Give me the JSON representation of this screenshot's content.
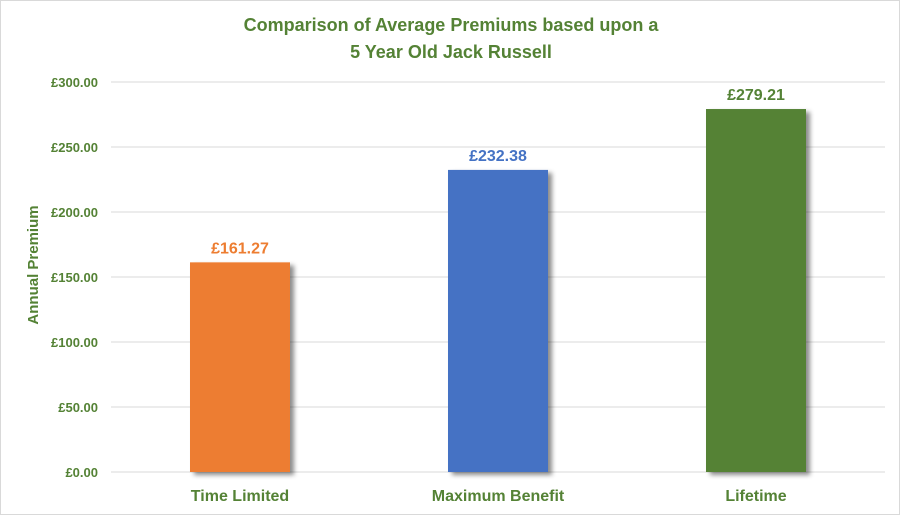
{
  "chart_data": {
    "type": "bar",
    "title_lines": [
      "Comparison  of Average Premiums based upon a",
      "5 Year Old Jack Russell"
    ],
    "xlabel": "",
    "ylabel": "Annual Premium",
    "categories": [
      "Time Limited",
      "Maximum Benefit",
      "Lifetime"
    ],
    "values": [
      161.27,
      232.38,
      279.21
    ],
    "data_labels": [
      "£161.27",
      "£232.38",
      "£279.21"
    ],
    "bar_colors": [
      "#ED7D31",
      "#4472C4",
      "#548235"
    ],
    "ylim": [
      0,
      300
    ],
    "y_ticks": [
      0,
      50,
      100,
      150,
      200,
      250,
      300
    ],
    "y_tick_labels": [
      "£0.00",
      "£50.00",
      "£100.00",
      "£150.00",
      "£200.00",
      "£250.00",
      "£300.00"
    ],
    "grid": true,
    "legend": "none",
    "text_color": "#548235",
    "grid_color": "#d9d9d9"
  }
}
